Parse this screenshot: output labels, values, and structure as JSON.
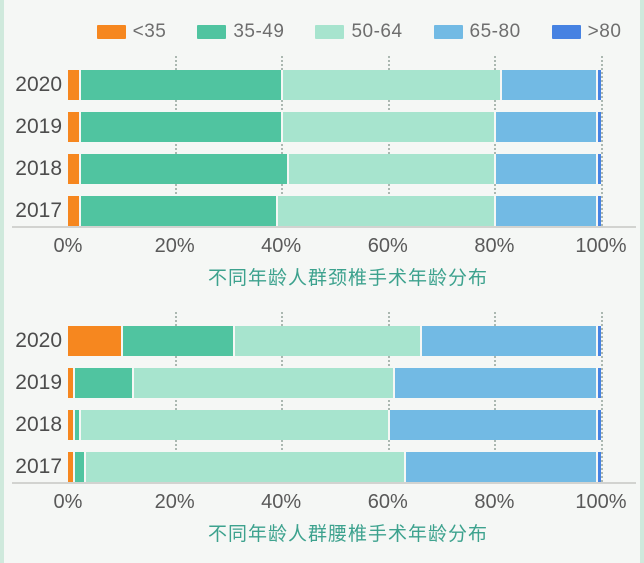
{
  "page": {
    "background_color": "#f5f7f5",
    "frame_border_color": "#cfe9dc"
  },
  "legend": {
    "items": [
      {
        "label": "<35",
        "color": "#f6871f"
      },
      {
        "label": "35-49",
        "color": "#50c4a0"
      },
      {
        "label": "50-64",
        "color": "#a7e4ce"
      },
      {
        "label": "65-80",
        "color": "#72bae4"
      },
      {
        "label": ">80",
        "color": "#4682e2"
      }
    ]
  },
  "chart_data": [
    {
      "type": "bar",
      "orientation": "horizontal",
      "stacked": true,
      "title": "不同年龄人群颈椎手术年龄分布",
      "categories": [
        "2020",
        "2019",
        "2018",
        "2017"
      ],
      "series": [
        {
          "name": "<35",
          "color": "#f6871f",
          "values": [
            2,
            2,
            2,
            2
          ]
        },
        {
          "name": "35-49",
          "color": "#50c4a0",
          "values": [
            38,
            38,
            39,
            37
          ]
        },
        {
          "name": "50-64",
          "color": "#a7e4ce",
          "values": [
            41,
            40,
            39,
            41
          ]
        },
        {
          "name": "65-80",
          "color": "#72bae4",
          "values": [
            18,
            19,
            19,
            19
          ]
        },
        {
          "name": ">80",
          "color": "#4682e2",
          "values": [
            1,
            1,
            1,
            1
          ]
        }
      ],
      "x_ticks": [
        "0%",
        "20%",
        "40%",
        "60%",
        "80%",
        "100%"
      ],
      "xlim": [
        0,
        100
      ],
      "grid": "vertical-dotted",
      "legend_position": "top-shared"
    },
    {
      "type": "bar",
      "orientation": "horizontal",
      "stacked": true,
      "title": "不同年龄人群腰椎手术年龄分布",
      "categories": [
        "2020",
        "2019",
        "2018",
        "2017"
      ],
      "series": [
        {
          "name": "<35",
          "color": "#f6871f",
          "values": [
            10,
            1,
            1,
            1
          ]
        },
        {
          "name": "35-49",
          "color": "#50c4a0",
          "values": [
            21,
            11,
            1,
            2
          ]
        },
        {
          "name": "50-64",
          "color": "#a7e4ce",
          "values": [
            35,
            49,
            58,
            60
          ]
        },
        {
          "name": "65-80",
          "color": "#72bae4",
          "values": [
            33,
            38,
            39,
            36
          ]
        },
        {
          "name": ">80",
          "color": "#4682e2",
          "values": [
            1,
            1,
            1,
            1
          ]
        }
      ],
      "x_ticks": [
        "0%",
        "20%",
        "40%",
        "60%",
        "80%",
        "100%"
      ],
      "xlim": [
        0,
        100
      ],
      "grid": "vertical-dotted",
      "legend_position": "top-shared"
    }
  ]
}
